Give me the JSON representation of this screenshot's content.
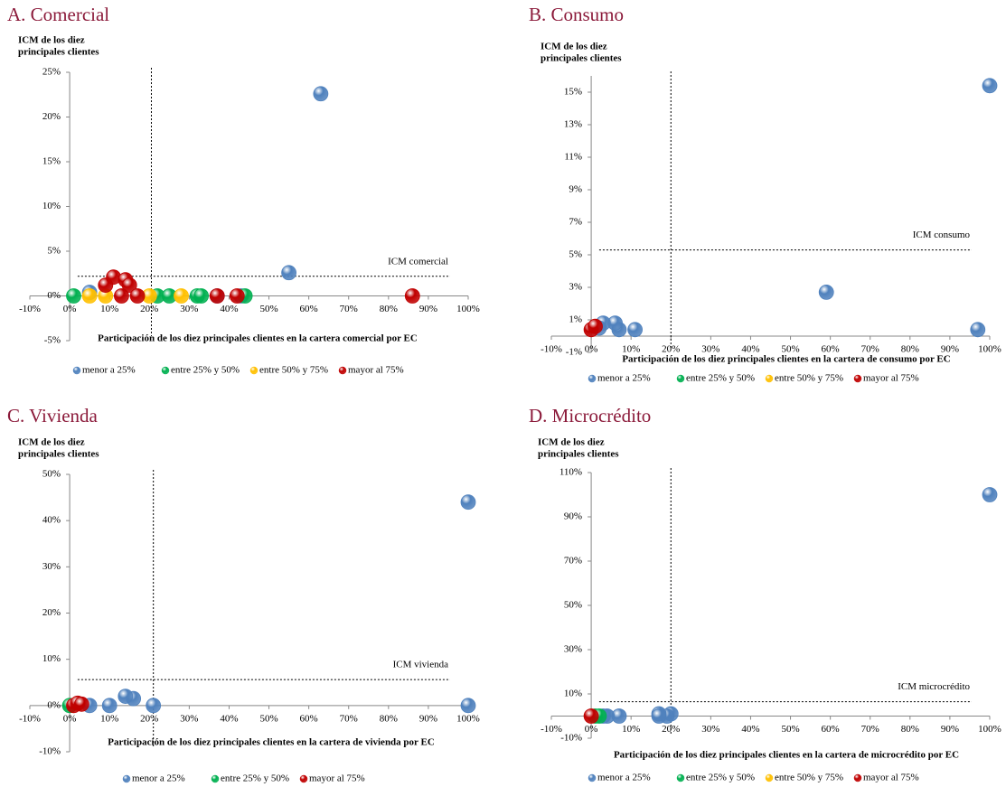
{
  "chart_data": [
    {
      "type": "scatter",
      "title": "A. Comercial",
      "y_label": [
        "ICM de los diez",
        "principales clientes"
      ],
      "x_label": "Participación de los diez principales clientes en la cartera comercial por EC",
      "xlim": [
        -10,
        100
      ],
      "ylim": [
        -5,
        25
      ],
      "xticks": [
        {
          "value": -10,
          "label": "-10%"
        },
        {
          "value": 0,
          "label": "0%"
        },
        {
          "value": 10,
          "label": "10%"
        },
        {
          "value": 20,
          "label": "20%"
        },
        {
          "value": 30,
          "label": "30%"
        },
        {
          "value": 40,
          "label": "40%"
        },
        {
          "value": 50,
          "label": "50%"
        },
        {
          "value": 60,
          "label": "60%"
        },
        {
          "value": 70,
          "label": "70%"
        },
        {
          "value": 80,
          "label": "80%"
        },
        {
          "value": 90,
          "label": "90%"
        },
        {
          "value": 100,
          "label": "100%"
        }
      ],
      "yticks": [
        {
          "value": -5,
          "label": "-5%"
        },
        {
          "value": 0,
          "label": "0%"
        },
        {
          "value": 5,
          "label": "5%"
        },
        {
          "value": 10,
          "label": "10%"
        },
        {
          "value": 15,
          "label": "15%"
        },
        {
          "value": 20,
          "label": "20%"
        },
        {
          "value": 25,
          "label": "25%"
        }
      ],
      "reference": {
        "x": 20.5,
        "y": 2.2,
        "label": "ICM comercial"
      },
      "series": [
        {
          "name": "menor a 25%",
          "color": "#4f81bd",
          "x": [
            63,
            55,
            5,
            37,
            43
          ],
          "values": [
            22.6,
            2.6,
            0.4,
            0,
            0
          ]
        },
        {
          "name": "entre 25% y 50%",
          "color": "#00b050",
          "x": [
            1,
            22,
            25,
            32,
            33,
            44
          ],
          "values": [
            0,
            0,
            0,
            0,
            0,
            0
          ]
        },
        {
          "name": "entre 50% y 75%",
          "color": "#ffc000",
          "x": [
            5,
            9,
            20,
            28
          ],
          "values": [
            0,
            0,
            0,
            0
          ]
        },
        {
          "name": "mayor al 75%",
          "color": "#c00000",
          "x": [
            9,
            11,
            14,
            15,
            13,
            17,
            37,
            42,
            86
          ],
          "values": [
            1.2,
            2.1,
            1.8,
            1.2,
            0,
            0,
            0,
            0,
            0
          ]
        }
      ]
    },
    {
      "type": "scatter",
      "title": "B. Consumo",
      "y_label": [
        "ICM de los diez",
        "principales clientes"
      ],
      "x_label": "Participación de los diez principales clientes en la cartera de consumo por EC",
      "xlim": [
        -10,
        100
      ],
      "ylim": [
        -1,
        16
      ],
      "xticks": [
        {
          "value": -10,
          "label": "-10%"
        },
        {
          "value": 0,
          "label": "0%"
        },
        {
          "value": 10,
          "label": "10%"
        },
        {
          "value": 20,
          "label": "20%"
        },
        {
          "value": 30,
          "label": "30%"
        },
        {
          "value": 40,
          "label": "40%"
        },
        {
          "value": 50,
          "label": "50%"
        },
        {
          "value": 60,
          "label": "60%"
        },
        {
          "value": 70,
          "label": "70%"
        },
        {
          "value": 80,
          "label": "80%"
        },
        {
          "value": 90,
          "label": "90%"
        },
        {
          "value": 100,
          "label": "100%"
        }
      ],
      "yticks": [
        {
          "value": -1,
          "label": "-1%"
        },
        {
          "value": 1,
          "label": "1%"
        },
        {
          "value": 3,
          "label": "3%"
        },
        {
          "value": 5,
          "label": "5%"
        },
        {
          "value": 7,
          "label": "7%"
        },
        {
          "value": 9,
          "label": "9%"
        },
        {
          "value": 11,
          "label": "11%"
        },
        {
          "value": 13,
          "label": "13%"
        },
        {
          "value": 15,
          "label": "15%"
        }
      ],
      "reference": {
        "x": 20,
        "y": 5.3,
        "label": "ICM consumo"
      },
      "series": [
        {
          "name": "menor a 25%",
          "color": "#4f81bd",
          "x": [
            100,
            59,
            97,
            11,
            7,
            6,
            3,
            2
          ],
          "values": [
            15.4,
            2.7,
            0.4,
            0.4,
            0.4,
            0.8,
            0.8,
            0.5
          ]
        },
        {
          "name": "entre 25% y 50%",
          "color": "#00b050",
          "x": [],
          "values": []
        },
        {
          "name": "entre 50% y 75%",
          "color": "#ffc000",
          "x": [],
          "values": []
        },
        {
          "name": "mayor al 75%",
          "color": "#c00000",
          "x": [
            0,
            1
          ],
          "values": [
            0.4,
            0.6
          ]
        }
      ]
    },
    {
      "type": "scatter",
      "title": "C. Vivienda",
      "y_label": [
        "ICM de los diez",
        "principales clientes"
      ],
      "x_label": "Participación de los diez principales clientes en la cartera de vivienda por EC",
      "xlim": [
        -10,
        100
      ],
      "ylim": [
        -10,
        50
      ],
      "xticks": [
        {
          "value": -10,
          "label": "-10%"
        },
        {
          "value": 0,
          "label": "0%"
        },
        {
          "value": 10,
          "label": "10%"
        },
        {
          "value": 20,
          "label": "20%"
        },
        {
          "value": 30,
          "label": "30%"
        },
        {
          "value": 40,
          "label": "40%"
        },
        {
          "value": 50,
          "label": "50%"
        },
        {
          "value": 60,
          "label": "60%"
        },
        {
          "value": 70,
          "label": "70%"
        },
        {
          "value": 80,
          "label": "80%"
        },
        {
          "value": 90,
          "label": "90%"
        },
        {
          "value": 100,
          "label": "100%"
        }
      ],
      "yticks": [
        {
          "value": -10,
          "label": "-10%"
        },
        {
          "value": 0,
          "label": "0%"
        },
        {
          "value": 10,
          "label": "10%"
        },
        {
          "value": 20,
          "label": "20%"
        },
        {
          "value": 30,
          "label": "30%"
        },
        {
          "value": 40,
          "label": "40%"
        },
        {
          "value": 50,
          "label": "50%"
        }
      ],
      "reference": {
        "x": 21,
        "y": 5.6,
        "label": "ICM vivienda"
      },
      "series": [
        {
          "name": "menor a 25%",
          "color": "#4f81bd",
          "x": [
            100,
            100,
            21,
            16,
            14,
            10,
            5
          ],
          "values": [
            44,
            0,
            0,
            1.5,
            2,
            0,
            0
          ]
        },
        {
          "name": "entre 25% y 50%",
          "color": "#00b050",
          "x": [
            0
          ],
          "values": [
            0
          ]
        },
        {
          "name": "mayor al 75%",
          "color": "#c00000",
          "x": [
            1,
            2,
            3
          ],
          "values": [
            0,
            0.5,
            0.3
          ]
        }
      ]
    },
    {
      "type": "scatter",
      "title": "D. Microcrédito",
      "y_label": [
        "ICM de los diez",
        "principales clientes"
      ],
      "x_label": "Participación de los diez principales clientes en la cartera de microcrédito por EC",
      "xlim": [
        -10,
        100
      ],
      "ylim": [
        -10,
        110
      ],
      "xticks": [
        {
          "value": -10,
          "label": "-10%"
        },
        {
          "value": 0,
          "label": "0%"
        },
        {
          "value": 10,
          "label": "10%"
        },
        {
          "value": 20,
          "label": "20%"
        },
        {
          "value": 30,
          "label": "30%"
        },
        {
          "value": 40,
          "label": "40%"
        },
        {
          "value": 50,
          "label": "50%"
        },
        {
          "value": 60,
          "label": "60%"
        },
        {
          "value": 70,
          "label": "70%"
        },
        {
          "value": 80,
          "label": "80%"
        },
        {
          "value": 90,
          "label": "90%"
        },
        {
          "value": 100,
          "label": "100%"
        }
      ],
      "yticks": [
        {
          "value": -10,
          "label": "-10%"
        },
        {
          "value": 10,
          "label": "10%"
        },
        {
          "value": 30,
          "label": "30%"
        },
        {
          "value": 50,
          "label": "50%"
        },
        {
          "value": 70,
          "label": "70%"
        },
        {
          "value": 90,
          "label": "90%"
        },
        {
          "value": 110,
          "label": "110%"
        }
      ],
      "reference": {
        "x": 20,
        "y": 6.5,
        "label": "ICM microcrédito"
      },
      "series": [
        {
          "name": "menor a 25%",
          "color": "#4f81bd",
          "x": [
            100,
            20,
            19,
            17,
            17,
            7,
            4,
            3
          ],
          "values": [
            100,
            1,
            0,
            1,
            0,
            0,
            0,
            0
          ]
        },
        {
          "name": "entre 25% y 50%",
          "color": "#00b050",
          "x": [
            1,
            2
          ],
          "values": [
            0,
            0
          ]
        },
        {
          "name": "entre 50% y 75%",
          "color": "#ffc000",
          "x": [],
          "values": []
        },
        {
          "name": "mayor al 75%",
          "color": "#c00000",
          "x": [
            0
          ],
          "values": [
            0
          ]
        }
      ]
    }
  ]
}
